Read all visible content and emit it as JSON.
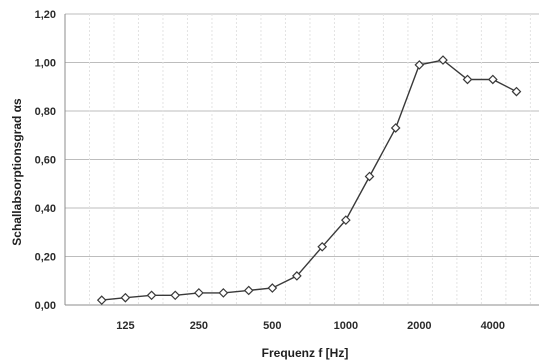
{
  "chart_data": {
    "type": "line",
    "xlabel": "Frequenz f [Hz]",
    "ylabel": "Schallabsorptionsgrad αs",
    "x_scale": "log",
    "x_tick_labels": [
      "125",
      "250",
      "500",
      "1000",
      "2000",
      "4000"
    ],
    "x_tick_values": [
      125,
      250,
      500,
      1000,
      2000,
      4000
    ],
    "ylim": [
      0,
      1.2
    ],
    "y_ticks": [
      0,
      0.2,
      0.4,
      0.6,
      0.8,
      1.0,
      1.2
    ],
    "y_tick_labels": [
      "0,00",
      "0,20",
      "0,40",
      "0,60",
      "0,80",
      "1,00",
      "1,20"
    ],
    "grid": true,
    "marker": "diamond",
    "colors": {
      "line": "#3a3a3a",
      "marker_fill": "#ffffff",
      "grid_major": "#bdbdbd",
      "grid_minor": "#e3e3e3",
      "axis": "#8c8c8c"
    },
    "series": [
      {
        "x": [
          100,
          125,
          160,
          200,
          250,
          315,
          400,
          500,
          630,
          800,
          1000,
          1250,
          1600,
          2000,
          2500,
          3150,
          4000,
          5000
        ],
        "y": [
          0.02,
          0.03,
          0.04,
          0.04,
          0.05,
          0.05,
          0.06,
          0.07,
          0.12,
          0.24,
          0.35,
          0.53,
          0.73,
          0.99,
          1.01,
          0.93,
          0.93,
          0.88
        ]
      }
    ]
  }
}
